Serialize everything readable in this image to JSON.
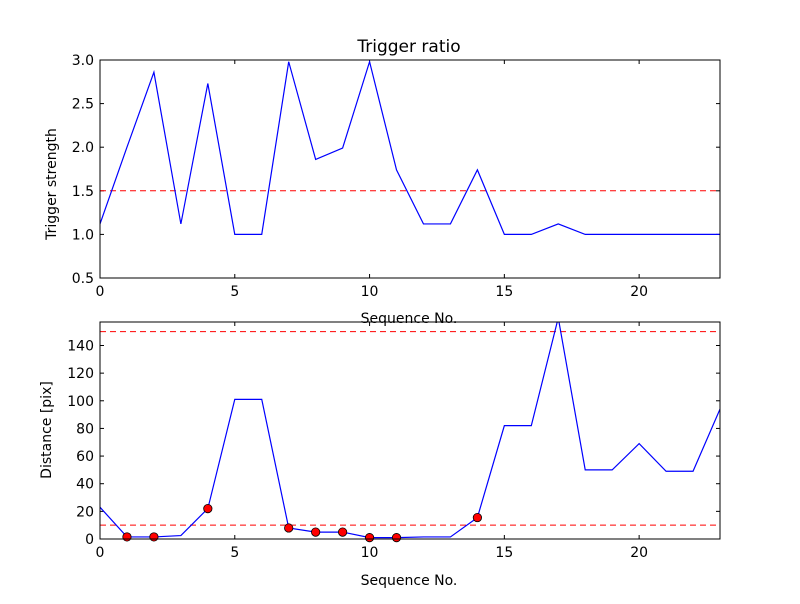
{
  "chart_data": [
    {
      "type": "line",
      "title": "Trigger ratio",
      "xlabel": "Sequence No.",
      "ylabel": "Trigger strength",
      "xlim": [
        0,
        23
      ],
      "ylim": [
        0.5,
        3.0
      ],
      "xticks": [
        0,
        5,
        10,
        15,
        20
      ],
      "xtick_labels": [
        "0",
        "5",
        "10",
        "15",
        "20"
      ],
      "yticks": [
        0.5,
        1.0,
        1.5,
        2.0,
        2.5,
        3.0
      ],
      "ytick_labels": [
        "0.5",
        "1.0",
        "1.5",
        "2.0",
        "2.5",
        "3.0"
      ],
      "grid": false,
      "series": [
        {
          "color": "#0000ff",
          "x": [
            0,
            1,
            2,
            3,
            4,
            5,
            6,
            7,
            8,
            9,
            10,
            11,
            12,
            13,
            14,
            15,
            16,
            17,
            18,
            19,
            20,
            21,
            22,
            23
          ],
          "y": [
            1.12,
            2.0,
            2.86,
            1.12,
            2.73,
            1.0,
            1.0,
            2.98,
            1.86,
            1.99,
            2.98,
            1.74,
            1.12,
            1.12,
            1.74,
            1.0,
            1.0,
            1.12,
            1.0,
            1.0,
            1.0,
            1.0,
            1.0,
            1.0
          ]
        }
      ],
      "threshold_lines": [
        {
          "y": 1.5,
          "color": "#ff0000",
          "style": "dashed"
        }
      ]
    },
    {
      "type": "line",
      "title": "",
      "xlabel": "Sequence No.",
      "ylabel": "Distance [pix]",
      "xlim": [
        0,
        23
      ],
      "ylim": [
        0,
        157
      ],
      "xticks": [
        0,
        5,
        10,
        15,
        20
      ],
      "xtick_labels": [
        "0",
        "5",
        "10",
        "15",
        "20"
      ],
      "yticks": [
        0,
        20,
        40,
        60,
        80,
        100,
        120,
        140
      ],
      "ytick_labels": [
        "0",
        "20",
        "40",
        "60",
        "80",
        "100",
        "120",
        "140"
      ],
      "grid": false,
      "series": [
        {
          "color": "#0000ff",
          "x": [
            0,
            1,
            2,
            3,
            4,
            5,
            6,
            7,
            8,
            9,
            10,
            11,
            12,
            13,
            14,
            15,
            16,
            17,
            18,
            19,
            20,
            21,
            22,
            23
          ],
          "y": [
            23,
            1.5,
            1.5,
            2.5,
            22,
            101,
            101,
            8,
            5,
            5,
            1,
            1,
            1.5,
            1.5,
            15.5,
            82,
            82,
            160,
            50,
            50,
            69,
            49,
            49,
            94
          ]
        }
      ],
      "markers": {
        "color": "#ff0000",
        "x": [
          1,
          2,
          4,
          7,
          8,
          9,
          10,
          11,
          14
        ],
        "y": [
          1.5,
          1.5,
          22,
          8,
          5,
          5,
          1,
          1,
          15.5
        ]
      },
      "threshold_lines": [
        {
          "y": 150,
          "color": "#ff0000",
          "style": "dashed"
        },
        {
          "y": 10,
          "color": "#ff0000",
          "style": "dashed"
        }
      ]
    }
  ]
}
